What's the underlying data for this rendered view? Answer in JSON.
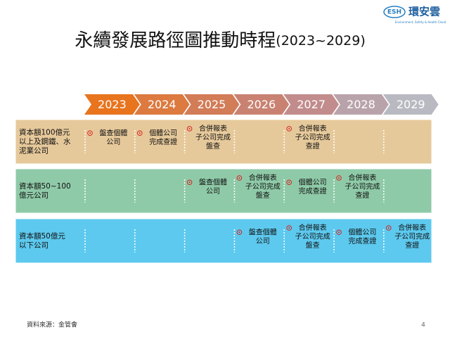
{
  "logo": {
    "mark": "ESH",
    "name": "環安雲",
    "tagline": "Environment, Safety & Health Cloud"
  },
  "title": {
    "main": "永續發展路徑圖推動時程",
    "range": "(2023~2029)"
  },
  "years": [
    "2023",
    "2024",
    "2025",
    "2026",
    "2027",
    "2028",
    "2029"
  ],
  "rows": [
    {
      "label": [
        "資本額100億元",
        "以上及鋼鐵、水",
        "泥業公司"
      ],
      "cells": [
        [
          "盤查個體",
          "公司"
        ],
        [
          "個體公司",
          "完成查證"
        ],
        [
          "合併報表",
          "子公司完成",
          "盤查"
        ],
        null,
        [
          "合併報表",
          "子公司完成",
          "查證"
        ],
        null,
        null
      ]
    },
    {
      "label": [
        "資本額50~100",
        "億元公司"
      ],
      "cells": [
        null,
        null,
        [
          "盤查個體",
          "公司"
        ],
        [
          "合併報表",
          "子公司完成",
          "盤查"
        ],
        [
          "個體公司",
          "完成查證"
        ],
        [
          "合併報表",
          "子公司完成",
          "查證"
        ],
        null
      ]
    },
    {
      "label": [
        "資本額50億元",
        "以下公司"
      ],
      "cells": [
        null,
        null,
        null,
        [
          "盤查個體",
          "公司"
        ],
        [
          "合併報表",
          "子公司完成",
          "盤查"
        ],
        [
          "個體公司",
          "完成查證"
        ],
        [
          "合併報表",
          "子公司完成",
          "查證"
        ]
      ]
    }
  ],
  "footer": {
    "source": "資料來源：金管會",
    "page": "4"
  }
}
